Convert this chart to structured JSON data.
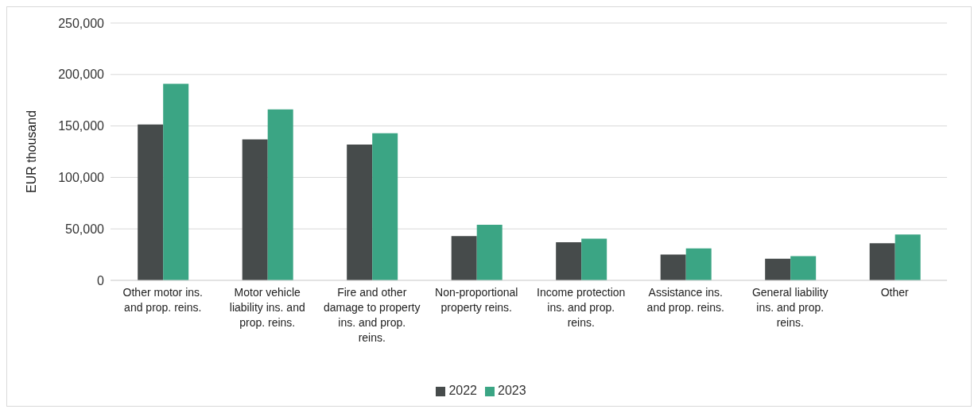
{
  "chart_data": {
    "type": "bar",
    "ylabel": "EUR thousand",
    "categories": [
      "Other motor ins. and prop. reins.",
      "Motor vehicle liability ins. and prop. reins.",
      "Fire and other damage to property ins. and prop. reins.",
      "Non-proportional property reins.",
      "Income protection ins. and prop. reins.",
      "Assistance ins. and prop. reins.",
      "General liability ins. and prop. reins.",
      "Other"
    ],
    "series": [
      {
        "name": "2022",
        "color": "#464b4b",
        "values": [
          151500,
          137000,
          132000,
          43000,
          37000,
          25000,
          21000,
          36000
        ]
      },
      {
        "name": "2023",
        "color": "#3ba584",
        "values": [
          191000,
          166000,
          143000,
          54000,
          40500,
          31000,
          23500,
          44500
        ]
      }
    ],
    "ylim": [
      0,
      250000
    ],
    "yticks": [
      0,
      {
        "value": 50000,
        "label": "50,000"
      },
      {
        "value": 100000,
        "label": "100,000"
      },
      {
        "value": 150000,
        "label": "150,000"
      },
      {
        "value": 200000,
        "label": "200,000"
      },
      {
        "value": 250000,
        "label": "250,000"
      }
    ],
    "grid": "y",
    "legend": "bottom"
  }
}
